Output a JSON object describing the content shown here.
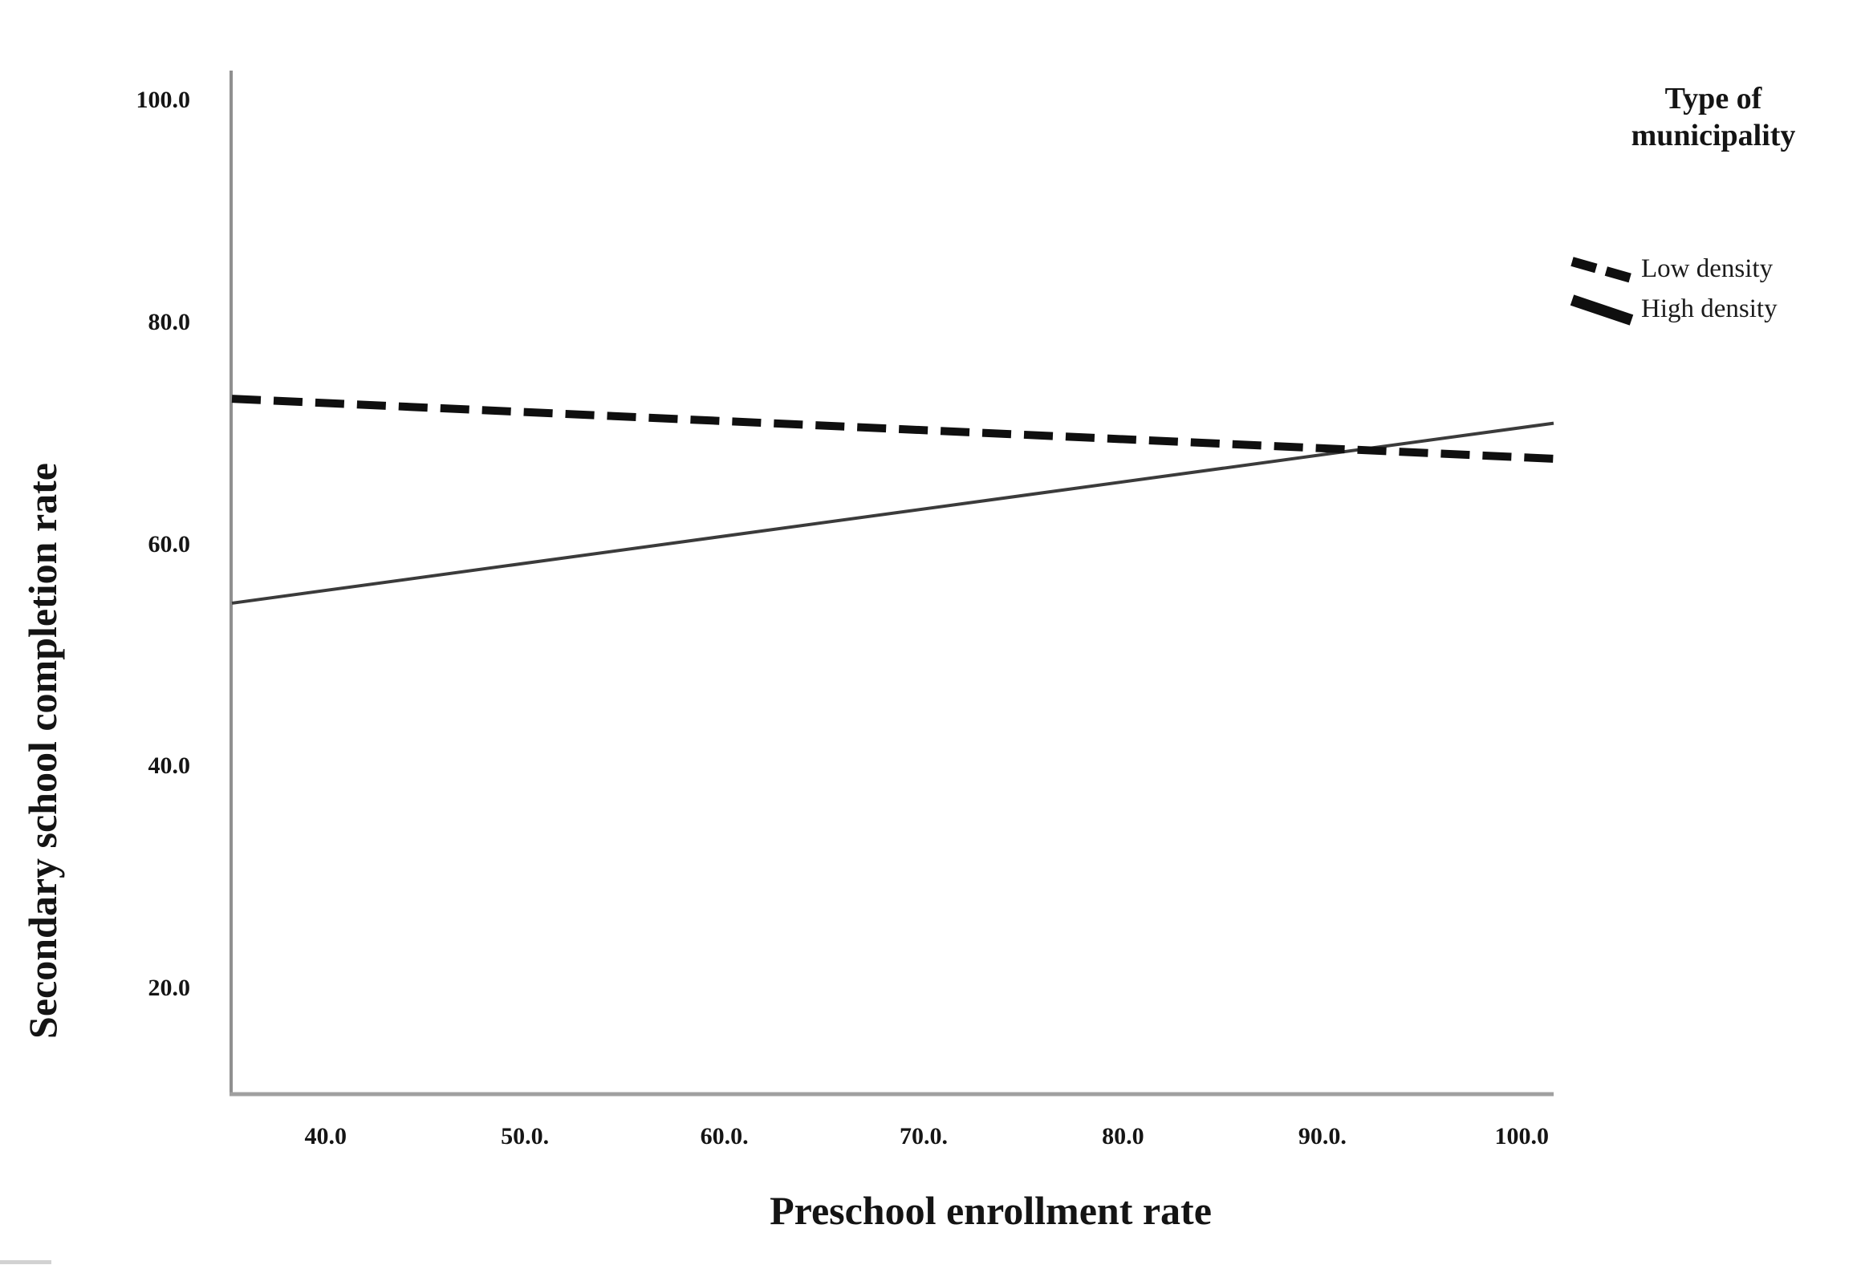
{
  "figure_type": "interaction-line-plot",
  "chart_data": {
    "type": "line",
    "title": "",
    "xlabel": "Preschool enrollment rate",
    "ylabel": "Secondary school completion rate",
    "xlim": [
      35.3,
      101.6
    ],
    "ylim": [
      10.5,
      102.5
    ],
    "grid": false,
    "x_ticks": [
      {
        "value": 40,
        "label": "40.0"
      },
      {
        "value": 50,
        "label": "50.0."
      },
      {
        "value": 60,
        "label": "60.0."
      },
      {
        "value": 70,
        "label": "70.0."
      },
      {
        "value": 80,
        "label": "80.0"
      },
      {
        "value": 90,
        "label": "90.0."
      },
      {
        "value": 100,
        "label": "100.0"
      }
    ],
    "y_ticks": [
      {
        "value": 20,
        "label": "20.0"
      },
      {
        "value": 40,
        "label": "40.0"
      },
      {
        "value": 60,
        "label": "60.0"
      },
      {
        "value": 80,
        "label": "80.0"
      },
      {
        "value": 100,
        "label": "100.0"
      }
    ],
    "legend": {
      "title": "Type of municipality",
      "position": "top-right",
      "entries": [
        {
          "name": "Low density",
          "style": "dashed"
        },
        {
          "name": "High density",
          "style": "solid"
        }
      ]
    },
    "series": [
      {
        "name": "High density",
        "style": "solid",
        "color": "#3b3b3b",
        "stroke_width": 4,
        "points": [
          [
            35.3,
            54.7
          ],
          [
            101.6,
            70.9
          ]
        ]
      },
      {
        "name": "Low density",
        "style": "dashed",
        "color": "#0f0f0f",
        "stroke_width": 10,
        "dash": "36 16",
        "points": [
          [
            35.3,
            73.1
          ],
          [
            101.6,
            67.7
          ]
        ]
      }
    ],
    "axis_colors": {
      "x_axis": "#a0a0a0",
      "y_axis": "#909090"
    }
  }
}
